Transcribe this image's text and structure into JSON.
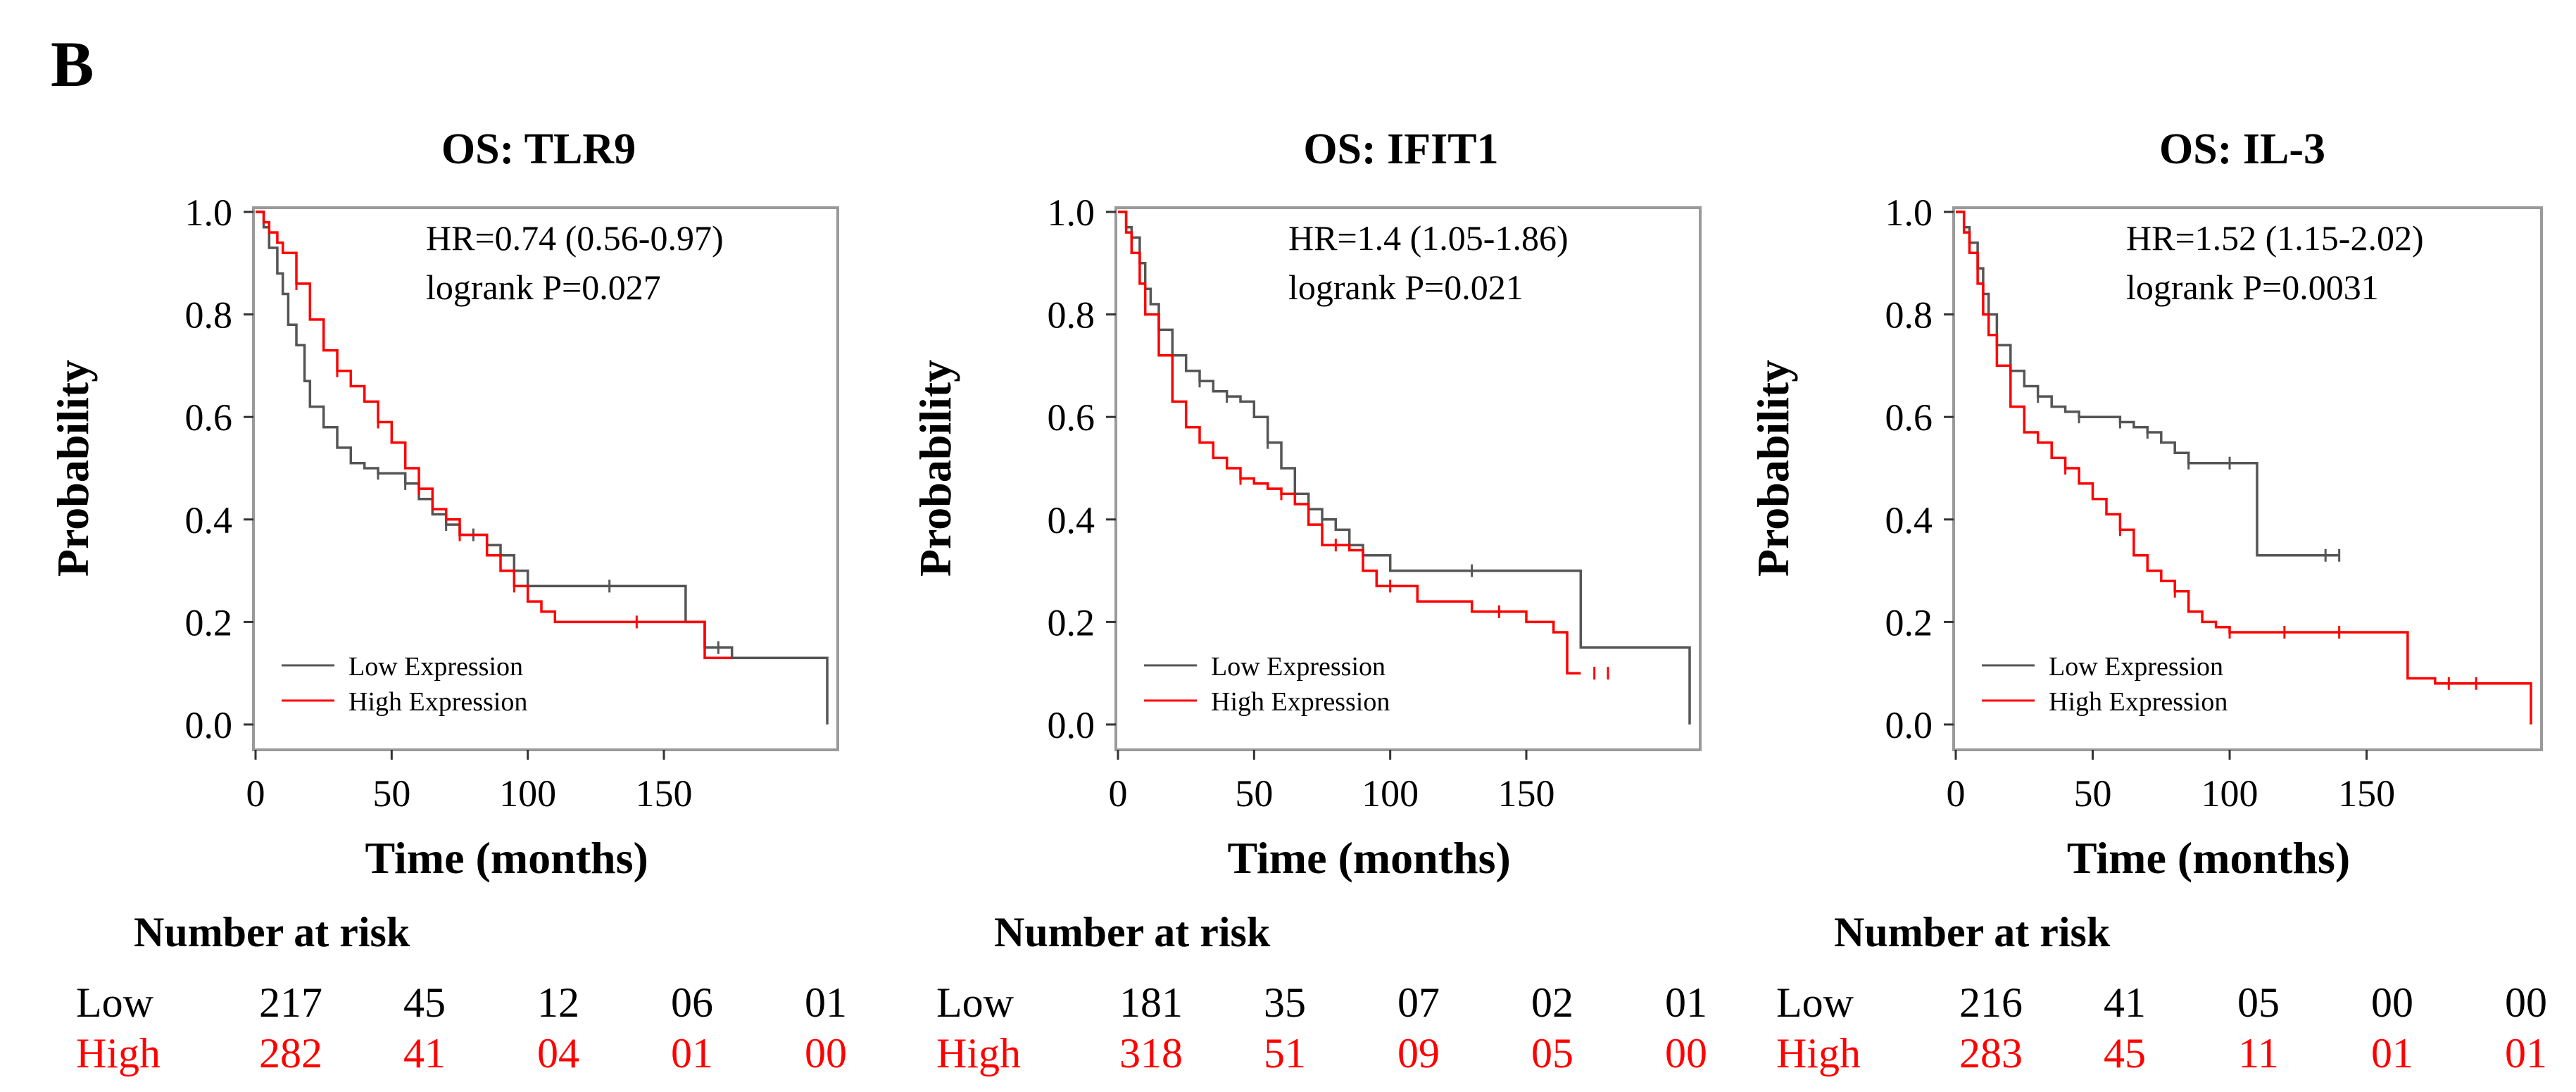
{
  "panel_label": "B",
  "chart_data": [
    {
      "type": "line",
      "title": "OS: TLR9",
      "xlabel": "Time (months)",
      "ylabel": "Probability",
      "xlim": [
        0,
        210
      ],
      "ylim": [
        0,
        1
      ],
      "x_ticks": [
        "0",
        "50",
        "100",
        "150"
      ],
      "y_ticks": [
        "0.0",
        "0.2",
        "0.4",
        "0.6",
        "0.8",
        "1.0"
      ],
      "hr_text": "HR=0.74 (0.56-0.97)",
      "p_text": "logrank P=0.027",
      "legend": [
        "Low Expression",
        "High Expression"
      ],
      "series": [
        {
          "name": "Low Expression",
          "color": "#555555",
          "x": [
            0,
            3,
            5,
            8,
            10,
            12,
            15,
            18,
            20,
            25,
            30,
            35,
            40,
            45,
            50,
            55,
            60,
            65,
            70,
            75,
            80,
            85,
            90,
            95,
            100,
            110,
            150,
            158,
            165,
            175,
            190,
            210
          ],
          "y": [
            1.0,
            0.97,
            0.93,
            0.88,
            0.84,
            0.78,
            0.74,
            0.67,
            0.62,
            0.58,
            0.54,
            0.51,
            0.5,
            0.49,
            0.49,
            0.47,
            0.44,
            0.41,
            0.39,
            0.37,
            0.37,
            0.35,
            0.33,
            0.3,
            0.27,
            0.27,
            0.27,
            0.2,
            0.15,
            0.13,
            0.13,
            0.0
          ],
          "censor_x": [
            45,
            55,
            70,
            80,
            95,
            130,
            170
          ]
        },
        {
          "name": "High Expression",
          "color": "#ff0000",
          "x": [
            0,
            3,
            5,
            8,
            10,
            15,
            20,
            25,
            30,
            35,
            40,
            45,
            50,
            55,
            60,
            65,
            70,
            75,
            80,
            85,
            90,
            95,
            100,
            105,
            110,
            160,
            165,
            175
          ],
          "y": [
            1.0,
            0.98,
            0.96,
            0.94,
            0.92,
            0.86,
            0.79,
            0.73,
            0.69,
            0.66,
            0.63,
            0.59,
            0.55,
            0.5,
            0.46,
            0.42,
            0.4,
            0.37,
            0.37,
            0.33,
            0.3,
            0.27,
            0.24,
            0.22,
            0.2,
            0.2,
            0.13,
            0.13
          ],
          "censor_x": [
            15,
            30,
            45,
            60,
            75,
            95,
            140
          ]
        }
      ],
      "risk_table": {
        "title": "Number at risk",
        "rows": [
          {
            "label": "Low",
            "values": [
              "217",
              "45",
              "12",
              "06",
              "01"
            ]
          },
          {
            "label": "High",
            "values": [
              "282",
              "41",
              "04",
              "01",
              "00"
            ]
          }
        ]
      }
    },
    {
      "type": "line",
      "title": "OS: IFIT1",
      "xlabel": "Time (months)",
      "ylabel": "Probability",
      "xlim": [
        0,
        210
      ],
      "ylim": [
        0,
        1
      ],
      "x_ticks": [
        "0",
        "50",
        "100",
        "150"
      ],
      "y_ticks": [
        "0.0",
        "0.2",
        "0.4",
        "0.6",
        "0.8",
        "1.0"
      ],
      "hr_text": "HR=1.4 (1.05-1.86)",
      "p_text": "logrank P=0.021",
      "legend": [
        "Low Expression",
        "High Expression"
      ],
      "series": [
        {
          "name": "Low Expression",
          "color": "#555555",
          "x": [
            0,
            3,
            5,
            8,
            10,
            12,
            15,
            20,
            25,
            30,
            35,
            40,
            45,
            50,
            55,
            60,
            65,
            70,
            75,
            80,
            85,
            90,
            100,
            110,
            150,
            165,
            170,
            200,
            210
          ],
          "y": [
            1.0,
            0.97,
            0.95,
            0.9,
            0.85,
            0.82,
            0.77,
            0.72,
            0.69,
            0.67,
            0.65,
            0.64,
            0.63,
            0.6,
            0.55,
            0.5,
            0.45,
            0.42,
            0.4,
            0.38,
            0.35,
            0.33,
            0.3,
            0.3,
            0.3,
            0.3,
            0.15,
            0.15,
            0.0
          ],
          "censor_x": [
            30,
            40,
            55,
            75,
            90,
            130
          ]
        },
        {
          "name": "High Expression",
          "color": "#ff0000",
          "x": [
            0,
            3,
            5,
            8,
            10,
            15,
            20,
            25,
            30,
            35,
            40,
            45,
            50,
            55,
            60,
            65,
            70,
            75,
            80,
            85,
            90,
            95,
            110,
            130,
            150,
            160,
            165,
            170
          ],
          "y": [
            1.0,
            0.96,
            0.92,
            0.86,
            0.8,
            0.72,
            0.63,
            0.58,
            0.55,
            0.52,
            0.5,
            0.48,
            0.47,
            0.46,
            0.45,
            0.43,
            0.39,
            0.35,
            0.35,
            0.34,
            0.3,
            0.27,
            0.24,
            0.22,
            0.2,
            0.18,
            0.1,
            0.1
          ],
          "censor_x": [
            45,
            60,
            80,
            100,
            140,
            175,
            180
          ]
        }
      ],
      "risk_table": {
        "title": "Number at risk",
        "rows": [
          {
            "label": "Low",
            "values": [
              "181",
              "35",
              "07",
              "02",
              "01"
            ]
          },
          {
            "label": "High",
            "values": [
              "318",
              "51",
              "09",
              "05",
              "00"
            ]
          }
        ]
      }
    },
    {
      "type": "line",
      "title": "OS: IL-3",
      "xlabel": "Time (months)",
      "ylabel": "Probability",
      "xlim": [
        0,
        210
      ],
      "ylim": [
        0,
        1
      ],
      "x_ticks": [
        "0",
        "50",
        "100",
        "150"
      ],
      "y_ticks": [
        "0.0",
        "0.2",
        "0.4",
        "0.6",
        "0.8",
        "1.0"
      ],
      "hr_text": "HR=1.52 (1.15-2.02)",
      "p_text": "logrank P=0.0031",
      "legend": [
        "Low Expression",
        "High Expression"
      ],
      "series": [
        {
          "name": "Low Expression",
          "color": "#555555",
          "x": [
            0,
            3,
            5,
            8,
            10,
            12,
            15,
            20,
            25,
            30,
            35,
            40,
            45,
            50,
            55,
            60,
            65,
            70,
            75,
            80,
            85,
            90,
            100,
            110,
            140
          ],
          "y": [
            1.0,
            0.97,
            0.94,
            0.89,
            0.84,
            0.8,
            0.74,
            0.69,
            0.66,
            0.64,
            0.62,
            0.61,
            0.6,
            0.6,
            0.6,
            0.59,
            0.58,
            0.57,
            0.55,
            0.53,
            0.51,
            0.51,
            0.51,
            0.33,
            0.33
          ],
          "censor_x": [
            15,
            30,
            45,
            60,
            70,
            85,
            100,
            135,
            140
          ]
        },
        {
          "name": "High Expression",
          "color": "#ff0000",
          "x": [
            0,
            3,
            5,
            8,
            10,
            12,
            15,
            20,
            25,
            30,
            35,
            40,
            45,
            50,
            55,
            60,
            65,
            70,
            75,
            80,
            85,
            90,
            95,
            100,
            155,
            165,
            175,
            210
          ],
          "y": [
            1.0,
            0.96,
            0.92,
            0.86,
            0.8,
            0.76,
            0.7,
            0.62,
            0.57,
            0.55,
            0.52,
            0.5,
            0.47,
            0.44,
            0.41,
            0.38,
            0.33,
            0.3,
            0.28,
            0.26,
            0.22,
            0.2,
            0.19,
            0.18,
            0.18,
            0.09,
            0.08,
            0.0
          ],
          "censor_x": [
            40,
            60,
            80,
            100,
            120,
            140,
            180,
            190
          ]
        }
      ],
      "risk_table": {
        "title": "Number at risk",
        "rows": [
          {
            "label": "Low",
            "values": [
              "216",
              "41",
              "05",
              "00",
              "00"
            ]
          },
          {
            "label": "High",
            "values": [
              "283",
              "45",
              "11",
              "01",
              "01"
            ]
          }
        ]
      }
    }
  ]
}
